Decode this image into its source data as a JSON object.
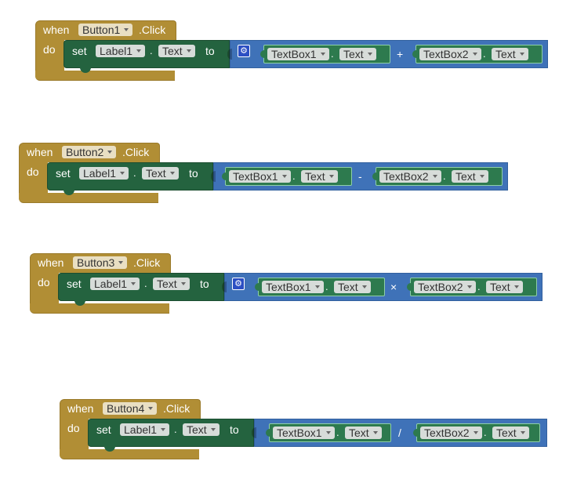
{
  "labels": {
    "when": "when",
    "do": "do",
    "set": "set",
    "to": "to",
    "click_suffix": ".Click",
    "dot": "."
  },
  "events": [
    {
      "button": "Button1",
      "target": "Label1",
      "property": "Text",
      "left_box": "TextBox1",
      "left_prop": "Text",
      "operator": "+",
      "right_box": "TextBox2",
      "right_prop": "Text",
      "has_gear": true
    },
    {
      "button": "Button2",
      "target": "Label1",
      "property": "Text",
      "left_box": "TextBox1",
      "left_prop": "Text",
      "operator": "-",
      "right_box": "TextBox2",
      "right_prop": "Text",
      "has_gear": false
    },
    {
      "button": "Button3",
      "target": "Label1",
      "property": "Text",
      "left_box": "TextBox1",
      "left_prop": "Text",
      "operator": "×",
      "right_box": "TextBox2",
      "right_prop": "Text",
      "has_gear": true
    },
    {
      "button": "Button4",
      "target": "Label1",
      "property": "Text",
      "left_box": "TextBox1",
      "left_prop": "Text",
      "operator": "/",
      "right_box": "TextBox2",
      "right_prop": "Text",
      "has_gear": false
    }
  ],
  "icons": {
    "gear": "gear-icon",
    "dropdown": "dropdown-arrow-icon"
  },
  "colors": {
    "event": "#b18e35",
    "set": "#24633f",
    "math": "#3f72b8",
    "getter": "#2d7a4e"
  }
}
